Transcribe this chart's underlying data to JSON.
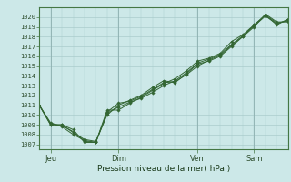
{
  "background_color": "#cce8e8",
  "grid_color": "#aacccc",
  "line_color": "#336633",
  "marker_color": "#336633",
  "xlabel": "Pression niveau de la mer( hPa )",
  "ylim": [
    1006.5,
    1021.0
  ],
  "yticks": [
    1007,
    1008,
    1009,
    1010,
    1011,
    1012,
    1013,
    1014,
    1015,
    1016,
    1017,
    1018,
    1019,
    1020
  ],
  "xtick_labels": [
    "Jeu",
    "Dim",
    "Ven",
    "Sam"
  ],
  "xtick_positions": [
    1,
    7,
    14,
    19
  ],
  "xlim": [
    0,
    22
  ],
  "series": [
    [
      1011.0,
      1009.0,
      1009.0,
      1008.5,
      1007.2,
      1007.2,
      1010.5,
      1010.5,
      1011.2,
      1011.8,
      1012.5,
      1013.2,
      1013.7,
      1014.5,
      1015.5,
      1015.8,
      1016.3,
      1017.5,
      1018.2,
      1019.2,
      1020.2,
      1019.2,
      1019.8
    ],
    [
      1011.0,
      1009.0,
      1009.0,
      1008.2,
      1007.5,
      1007.3,
      1010.0,
      1011.0,
      1011.5,
      1012.0,
      1012.8,
      1013.5,
      1013.3,
      1014.2,
      1015.2,
      1015.5,
      1016.0,
      1017.0,
      1018.0,
      1019.0,
      1020.3,
      1019.5,
      1019.5
    ],
    [
      1011.0,
      1009.2,
      1008.8,
      1008.0,
      1007.4,
      1007.2,
      1010.2,
      1010.8,
      1011.3,
      1011.7,
      1012.3,
      1013.0,
      1013.5,
      1014.3,
      1015.3,
      1015.7,
      1016.2,
      1017.2,
      1018.1,
      1019.1,
      1020.1,
      1019.3,
      1019.7
    ],
    [
      1011.0,
      1009.1,
      1008.9,
      1008.3,
      1007.3,
      1007.2,
      1010.3,
      1011.2,
      1011.4,
      1011.9,
      1012.6,
      1013.3,
      1013.4,
      1014.1,
      1015.0,
      1015.6,
      1016.1,
      1017.1,
      1018.0,
      1019.2,
      1020.2,
      1019.4,
      1019.6
    ]
  ]
}
